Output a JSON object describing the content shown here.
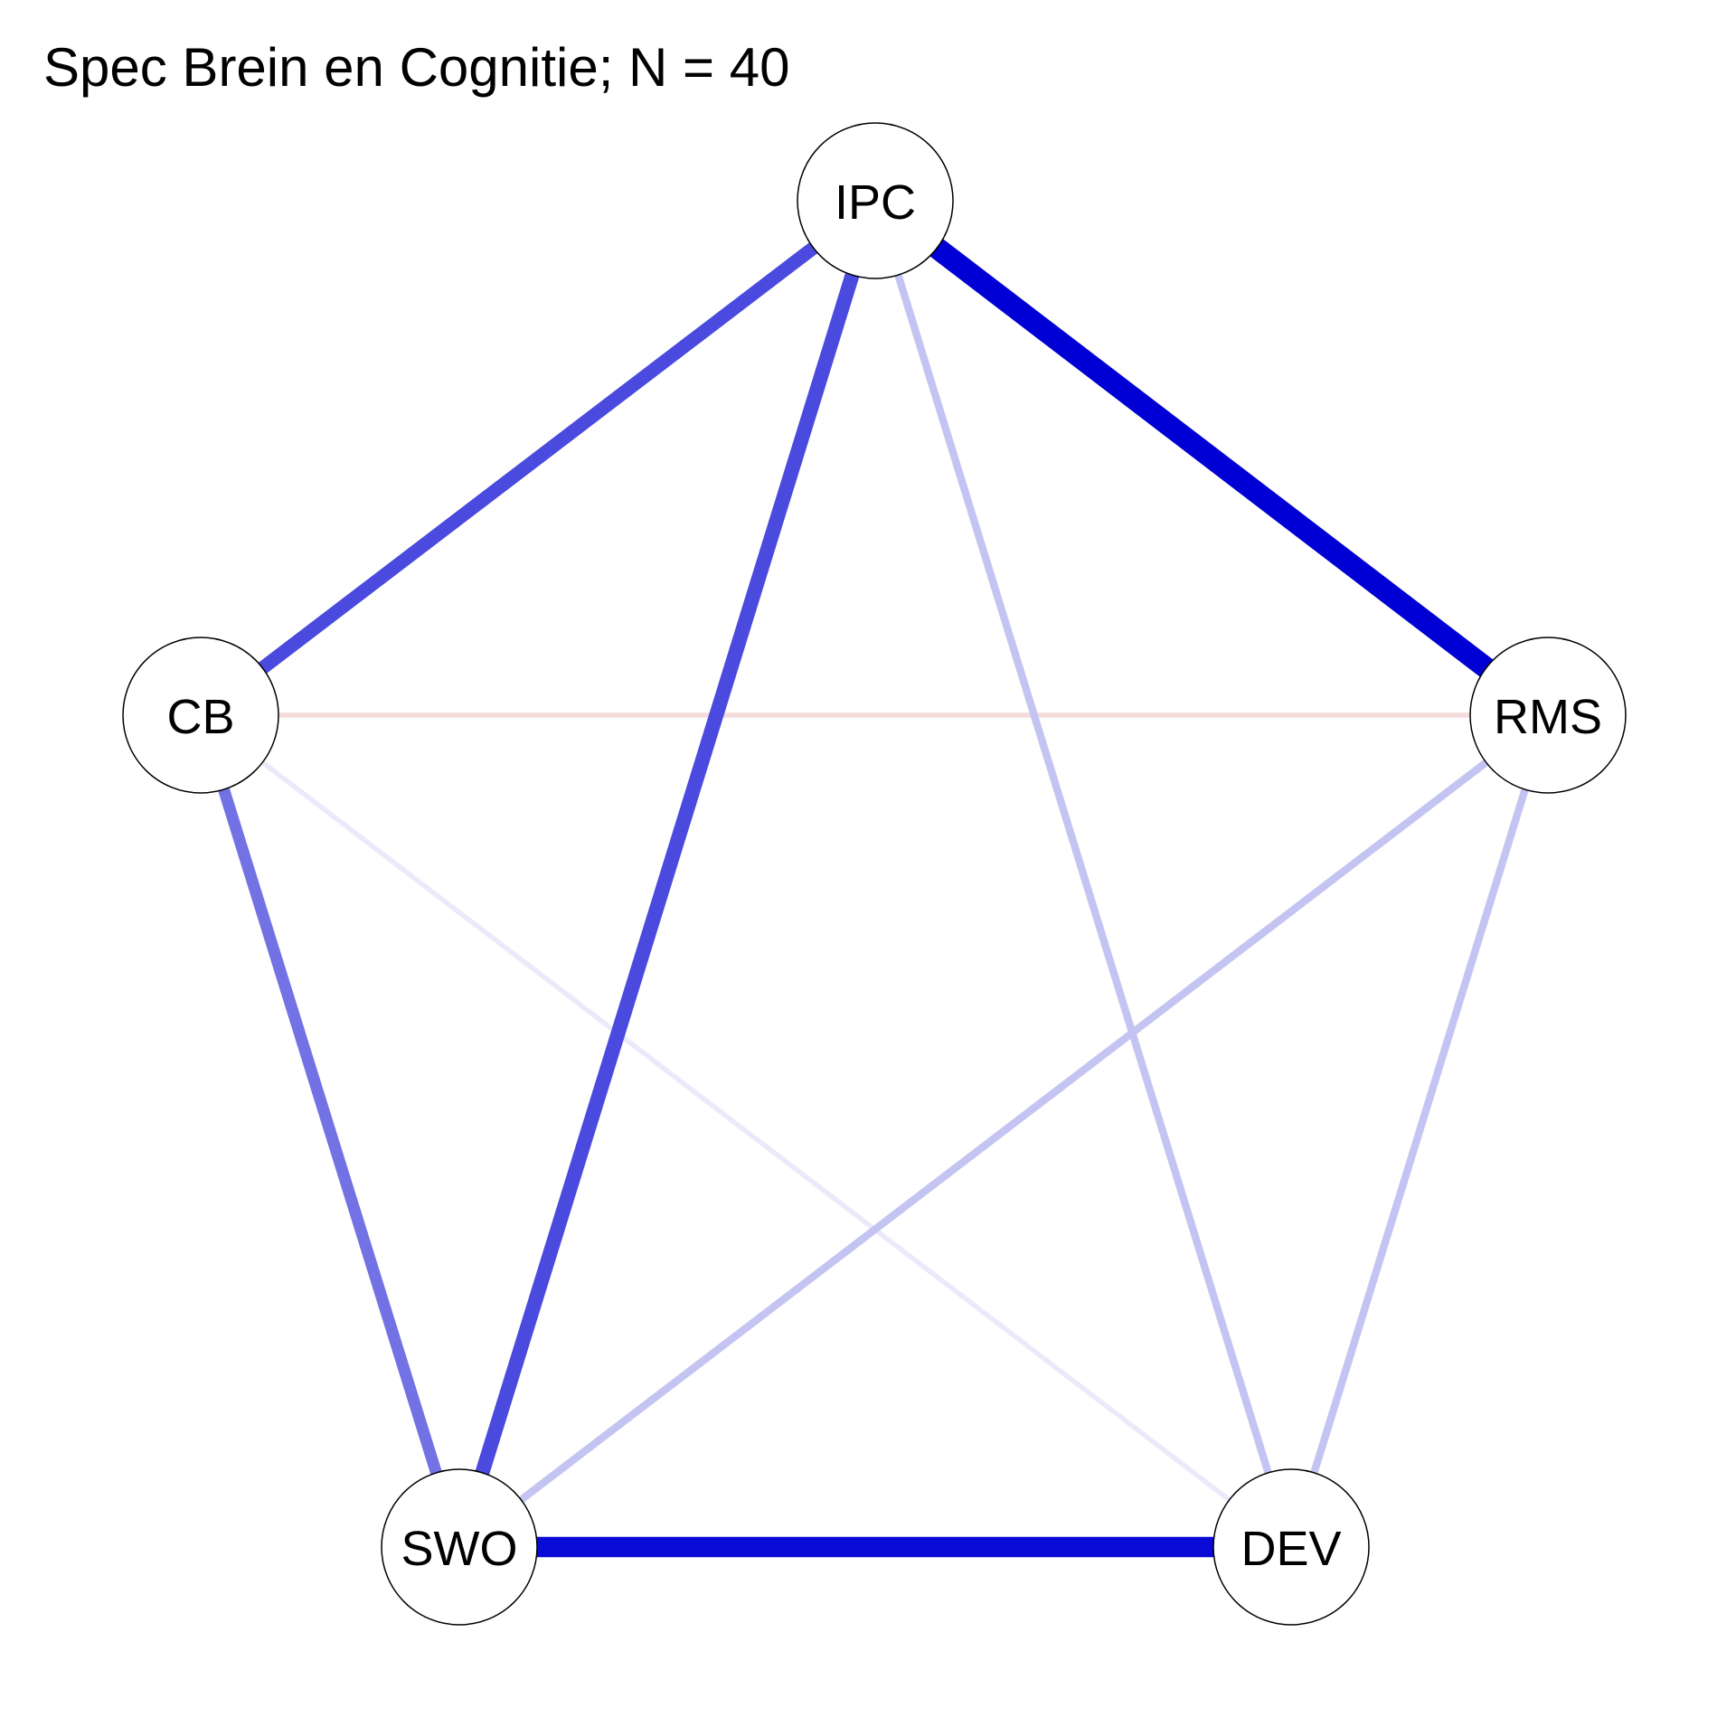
{
  "title": "Spec Brein en Cognitie; N = 40",
  "nodes": [
    {
      "id": "IPC",
      "label": "IPC"
    },
    {
      "id": "RMS",
      "label": "RMS"
    },
    {
      "id": "DEV",
      "label": "DEV"
    },
    {
      "id": "SWO",
      "label": "SWO"
    },
    {
      "id": "CB",
      "label": "CB"
    }
  ],
  "edges": [
    {
      "from": "IPC",
      "to": "RMS",
      "weight": 1.0,
      "sign": "positive",
      "color": "#0000D5"
    },
    {
      "from": "SWO",
      "to": "DEV",
      "weight": 0.92,
      "sign": "positive",
      "color": "#0A0AD6"
    },
    {
      "from": "IPC",
      "to": "SWO",
      "weight": 0.6,
      "sign": "positive",
      "color": "#4A4ADF"
    },
    {
      "from": "IPC",
      "to": "CB",
      "weight": 0.55,
      "sign": "positive",
      "color": "#4A4ADF"
    },
    {
      "from": "CB",
      "to": "SWO",
      "weight": 0.45,
      "sign": "positive",
      "color": "#7272E5"
    },
    {
      "from": "IPC",
      "to": "DEV",
      "weight": 0.22,
      "sign": "positive",
      "color": "#C4C4F2"
    },
    {
      "from": "RMS",
      "to": "SWO",
      "weight": 0.22,
      "sign": "positive",
      "color": "#C4C4F2"
    },
    {
      "from": "RMS",
      "to": "DEV",
      "weight": 0.22,
      "sign": "positive",
      "color": "#C4C4F2"
    },
    {
      "from": "CB",
      "to": "DEV",
      "weight": 0.08,
      "sign": "positive",
      "color": "#EAEAFB"
    },
    {
      "from": "CB",
      "to": "RMS",
      "weight": 0.08,
      "sign": "negative",
      "color": "#F5DCDC"
    }
  ]
}
